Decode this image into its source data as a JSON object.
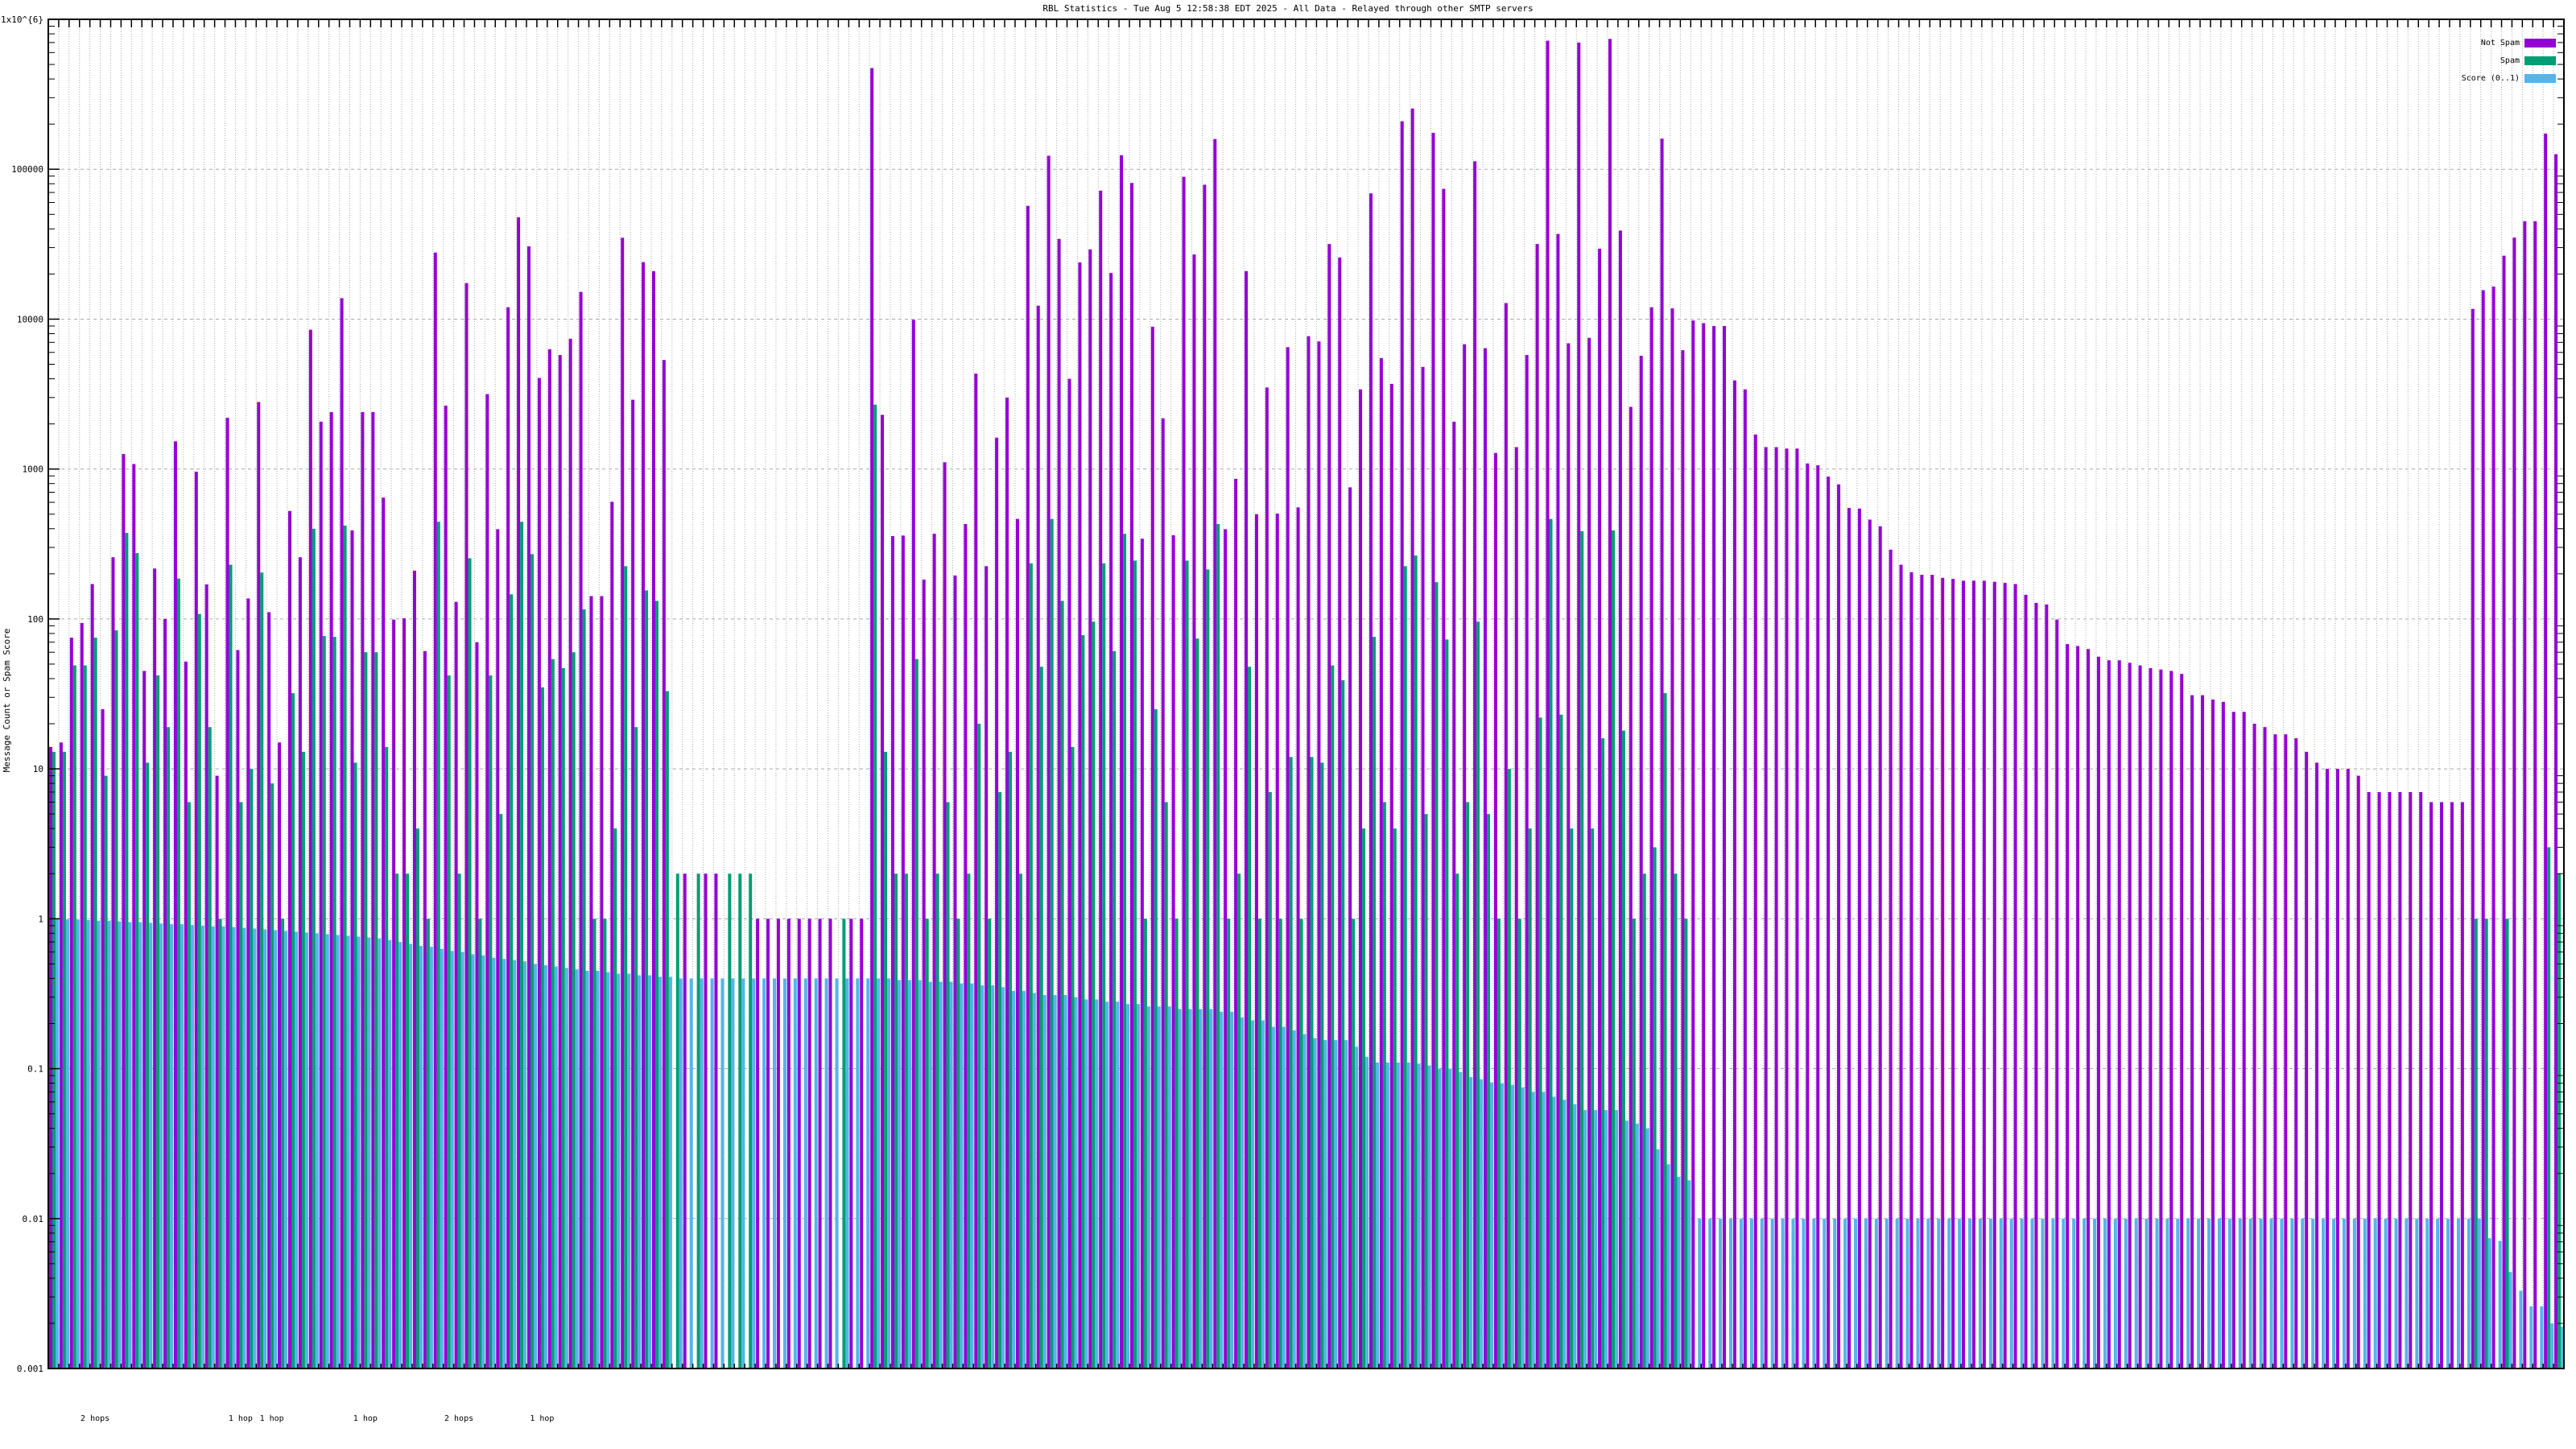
{
  "chart_data": {
    "type": "bar",
    "title": "RBL Statistics - Tue Aug  5 12:58:38 EDT 2025 - All Data - Relayed through other SMTP servers",
    "xlabel": "",
    "ylabel": "Message Count or Spam Score",
    "yscale": "log",
    "ylim": [
      0.001,
      1000000
    ],
    "grid": true,
    "legend_placement": "top-right",
    "yticks": [
      {
        "value": 1000000,
        "label": "1x10^{6}"
      },
      {
        "value": 100000,
        "label": "100000"
      },
      {
        "value": 10000,
        "label": "10000"
      },
      {
        "value": 1000,
        "label": "1000"
      },
      {
        "value": 100,
        "label": "100"
      },
      {
        "value": 10,
        "label": "10"
      },
      {
        "value": 1,
        "label": "1"
      },
      {
        "value": 0.1,
        "label": "0.1"
      },
      {
        "value": 0.01,
        "label": "0.01"
      },
      {
        "value": 0.001,
        "label": "0.001"
      }
    ],
    "hop_labels": [
      {
        "label": "2 hops",
        "category": 5
      },
      {
        "label": "1 hop",
        "category": 19
      },
      {
        "label": "1 hop",
        "category": 22
      },
      {
        "label": "1 hop",
        "category": 31
      },
      {
        "label": "2 hops",
        "category": 40
      },
      {
        "label": "1 hop",
        "category": 48
      }
    ],
    "series": [
      {
        "name": "Not Spam",
        "color": "#9400d3",
        "values": [
          14,
          15,
          75,
          94,
          171,
          25,
          258,
          1260,
          1080,
          45,
          217,
          100,
          1530,
          52,
          960,
          170,
          9,
          2200,
          62,
          137,
          2800,
          111,
          15,
          525,
          258,
          8500,
          2070,
          2400,
          13800,
          390,
          2400,
          2400,
          645,
          99,
          101,
          210,
          61,
          27800,
          2650,
          130,
          17400,
          70,
          3160,
          397,
          12000,
          47800,
          30600,
          4050,
          6300,
          5760,
          7400,
          15200,
          142,
          142,
          605,
          34900,
          2900,
          24000,
          20900,
          5340,
          0,
          2,
          0,
          2,
          2,
          0,
          0,
          0,
          1,
          1,
          1,
          1,
          1,
          1,
          1,
          1,
          0,
          1,
          1,
          473000,
          2300,
          357,
          360,
          9900,
          183,
          370,
          1110,
          195,
          430,
          4330,
          225,
          1620,
          3000,
          465,
          57000,
          12300,
          123000,
          34300,
          4000,
          23900,
          29200,
          72000,
          20300,
          124000,
          81000,
          343,
          8900,
          2180,
          362,
          89000,
          27000,
          78800,
          159000,
          397,
          860,
          20900,
          500,
          3500,
          505,
          6500,
          555,
          7700,
          7100,
          31700,
          25800,
          755,
          3400,
          69000,
          5500,
          3700,
          209000,
          254000,
          4800,
          175000,
          74000,
          2070,
          6800,
          113000,
          6400,
          1280,
          12800,
          1400,
          5760,
          31700,
          720000,
          37000,
          6900,
          700000,
          7500,
          29500,
          740000,
          39000,
          2600,
          5700,
          12000,
          160000,
          11800,
          6200,
          9800,
          9400,
          9000,
          9000,
          3900,
          3400,
          1700,
          1400,
          1400,
          1370,
          1370,
          1090,
          1060,
          890,
          790,
          550,
          545,
          460,
          415,
          290,
          230,
          205,
          197,
          197,
          188,
          185,
          180,
          180,
          180,
          177,
          174,
          171,
          145,
          128,
          125,
          99,
          68,
          66,
          63,
          56,
          53,
          53,
          51,
          49,
          47,
          46,
          45,
          43,
          31,
          31,
          29,
          28,
          24,
          24,
          20,
          19,
          17,
          17,
          16,
          13,
          11,
          10,
          10,
          10,
          9,
          7,
          7,
          7,
          7,
          7,
          7,
          6,
          6,
          6,
          6,
          11700,
          15600,
          16500,
          26500,
          35000,
          45000,
          45000,
          173000,
          126000
        ]
      },
      {
        "name": "Spam",
        "color": "#009e73",
        "values": [
          13,
          13,
          49,
          49,
          75,
          9,
          84,
          375,
          275,
          11,
          42,
          19,
          186,
          6,
          108,
          19,
          1,
          230,
          6,
          10,
          204,
          8,
          1,
          32,
          13,
          400,
          77,
          76,
          420,
          11,
          60,
          60,
          14,
          2,
          2,
          4,
          1,
          445,
          42,
          2,
          254,
          1,
          42,
          5,
          146,
          445,
          271,
          35,
          54,
          47,
          60,
          116,
          1,
          1,
          4,
          225,
          19,
          155,
          132,
          33,
          2,
          0,
          2,
          0,
          0,
          2,
          2,
          2,
          0,
          0,
          0,
          0,
          0,
          0,
          0,
          0,
          1,
          0,
          0,
          2690,
          13,
          2,
          2,
          54,
          1,
          2,
          6,
          1,
          2,
          20,
          1,
          7,
          13,
          2,
          235,
          48,
          465,
          132,
          14,
          78,
          96,
          235,
          61,
          370,
          245,
          1,
          25,
          6,
          1,
          245,
          74,
          214,
          430,
          1,
          2,
          48,
          1,
          7,
          1,
          12,
          1,
          12,
          11,
          49,
          39,
          1,
          4,
          76,
          6,
          4,
          225,
          265,
          5,
          176,
          73,
          2,
          6,
          96,
          5,
          1,
          10,
          1,
          4,
          22,
          465,
          23,
          4,
          385,
          4,
          16,
          390,
          18,
          1,
          2,
          3,
          32,
          2,
          1,
          0,
          0,
          0,
          0,
          0,
          0,
          0,
          0,
          0,
          0,
          0,
          0,
          0,
          0,
          0,
          0,
          0,
          0,
          0,
          0,
          0,
          0,
          0,
          0,
          0,
          0,
          0,
          0,
          0,
          0,
          0,
          0,
          0,
          0,
          0,
          0,
          0,
          0,
          0,
          0,
          0,
          0,
          0,
          0,
          0,
          0,
          0,
          0,
          0,
          0,
          0,
          0,
          0,
          0,
          0,
          0,
          0,
          0,
          0,
          0,
          0,
          0,
          0,
          0,
          0,
          0,
          0,
          0,
          0,
          0,
          0,
          0,
          0,
          0,
          0,
          1,
          1,
          0,
          1,
          0,
          0,
          0,
          3,
          2
        ]
      },
      {
        "name": "Score (0..1)",
        "color": "#56b4e9",
        "values": [
          1.0,
          0.99,
          0.99,
          0.98,
          0.97,
          0.97,
          0.96,
          0.95,
          0.95,
          0.94,
          0.93,
          0.92,
          0.92,
          0.91,
          0.9,
          0.89,
          0.89,
          0.88,
          0.87,
          0.86,
          0.85,
          0.84,
          0.83,
          0.82,
          0.81,
          0.8,
          0.79,
          0.78,
          0.77,
          0.76,
          0.75,
          0.74,
          0.72,
          0.7,
          0.68,
          0.66,
          0.65,
          0.63,
          0.61,
          0.6,
          0.58,
          0.57,
          0.55,
          0.54,
          0.53,
          0.52,
          0.5,
          0.49,
          0.48,
          0.47,
          0.46,
          0.45,
          0.45,
          0.44,
          0.43,
          0.43,
          0.42,
          0.42,
          0.41,
          0.41,
          0.4,
          0.4,
          0.4,
          0.4,
          0.4,
          0.4,
          0.4,
          0.4,
          0.4,
          0.4,
          0.4,
          0.4,
          0.4,
          0.4,
          0.4,
          0.4,
          0.4,
          0.4,
          0.4,
          0.4,
          0.4,
          0.39,
          0.39,
          0.39,
          0.38,
          0.38,
          0.38,
          0.37,
          0.37,
          0.36,
          0.36,
          0.35,
          0.33,
          0.33,
          0.32,
          0.31,
          0.31,
          0.31,
          0.3,
          0.29,
          0.29,
          0.28,
          0.28,
          0.27,
          0.27,
          0.26,
          0.26,
          0.26,
          0.25,
          0.25,
          0.25,
          0.25,
          0.24,
          0.24,
          0.22,
          0.21,
          0.21,
          0.19,
          0.19,
          0.18,
          0.17,
          0.16,
          0.155,
          0.155,
          0.155,
          0.14,
          0.12,
          0.11,
          0.11,
          0.11,
          0.11,
          0.108,
          0.105,
          0.1,
          0.1,
          0.095,
          0.088,
          0.085,
          0.081,
          0.08,
          0.078,
          0.075,
          0.07,
          0.07,
          0.065,
          0.062,
          0.058,
          0.053,
          0.053,
          0.053,
          0.053,
          0.045,
          0.043,
          0.04,
          0.029,
          0.023,
          0.019,
          0.018,
          0.01,
          0.01,
          0.01,
          0.01,
          0.01,
          0.01,
          0.01,
          0.01,
          0.01,
          0.01,
          0.01,
          0.01,
          0.01,
          0.01,
          0.01,
          0.01,
          0.01,
          0.01,
          0.01,
          0.01,
          0.01,
          0.01,
          0.01,
          0.01,
          0.01,
          0.01,
          0.01,
          0.01,
          0.01,
          0.01,
          0.01,
          0.01,
          0.01,
          0.01,
          0.01,
          0.01,
          0.01,
          0.01,
          0.01,
          0.01,
          0.01,
          0.01,
          0.01,
          0.01,
          0.01,
          0.01,
          0.01,
          0.01,
          0.01,
          0.01,
          0.01,
          0.01,
          0.01,
          0.01,
          0.01,
          0.01,
          0.01,
          0.01,
          0.01,
          0.01,
          0.01,
          0.01,
          0.01,
          0.01,
          0.01,
          0.01,
          0.01,
          0.01,
          0.01,
          0.01,
          0.01,
          0.01,
          0.01,
          0.01,
          0.01,
          0.01,
          0.0074,
          0.0071,
          0.0044,
          0.0033,
          0.0026,
          0.0026,
          0.002,
          0.0019
        ]
      }
    ]
  }
}
